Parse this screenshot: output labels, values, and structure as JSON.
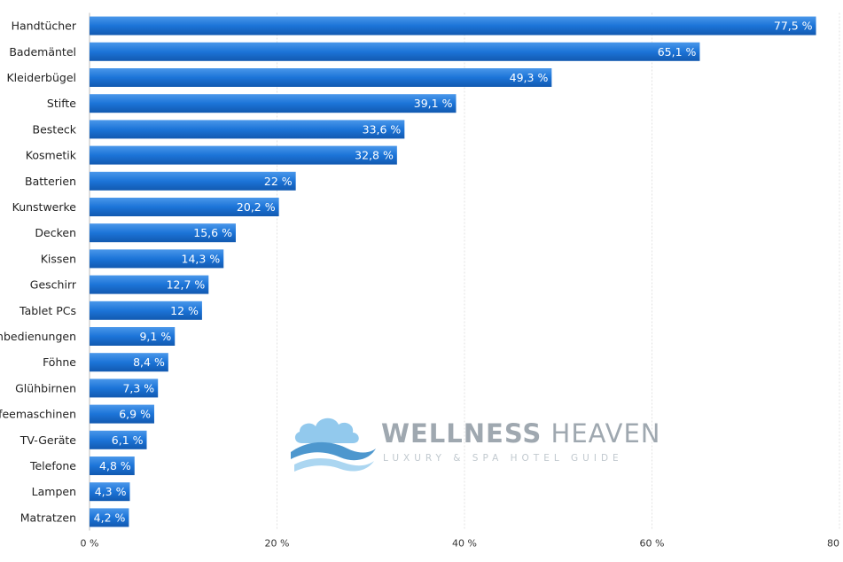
{
  "chart_data": {
    "type": "bar",
    "orientation": "horizontal",
    "categories": [
      "Handtücher",
      "Bademäntel",
      "Kleiderbügel",
      "Stifte",
      "Besteck",
      "Kosmetik",
      "Batterien",
      "Kunstwerke",
      "Decken",
      "Kissen",
      "Geschirr",
      "Tablet PCs",
      "Fernbedienungen",
      "Föhne",
      "Glühbirnen",
      "Kaffeemaschinen",
      "TV-Geräte",
      "Telefone",
      "Lampen",
      "Matratzen"
    ],
    "values": [
      77.5,
      65.1,
      49.3,
      39.1,
      33.6,
      32.8,
      22,
      20.2,
      15.6,
      14.3,
      12.7,
      12,
      9.1,
      8.4,
      7.3,
      6.9,
      6.1,
      4.8,
      4.3,
      4.2
    ],
    "value_labels": [
      "77,5 %",
      "65,1 %",
      "49,3 %",
      "39,1 %",
      "33,6 %",
      "32,8 %",
      "22 %",
      "20,2 %",
      "15,6 %",
      "14,3 %",
      "12,7 %",
      "12 %",
      "9,1 %",
      "8,4 %",
      "7,3 %",
      "6,9 %",
      "6,1 %",
      "4,8 %",
      "4,3 %",
      "4,2 %"
    ],
    "xlim": [
      0,
      80
    ],
    "x_ticks": [
      0,
      20,
      40,
      60,
      80
    ],
    "x_tick_labels": [
      "0 %",
      "20 %",
      "40 %",
      "60 %",
      "80 %"
    ],
    "grid": true,
    "bar_color": "#1a73d6"
  },
  "watermark": {
    "name_bold": "WELLNESS",
    "name_light": "HEAVEN",
    "tagline": "LUXURY & SPA HOTEL GUIDE",
    "logo_icon": "cloud-wave-icon"
  }
}
